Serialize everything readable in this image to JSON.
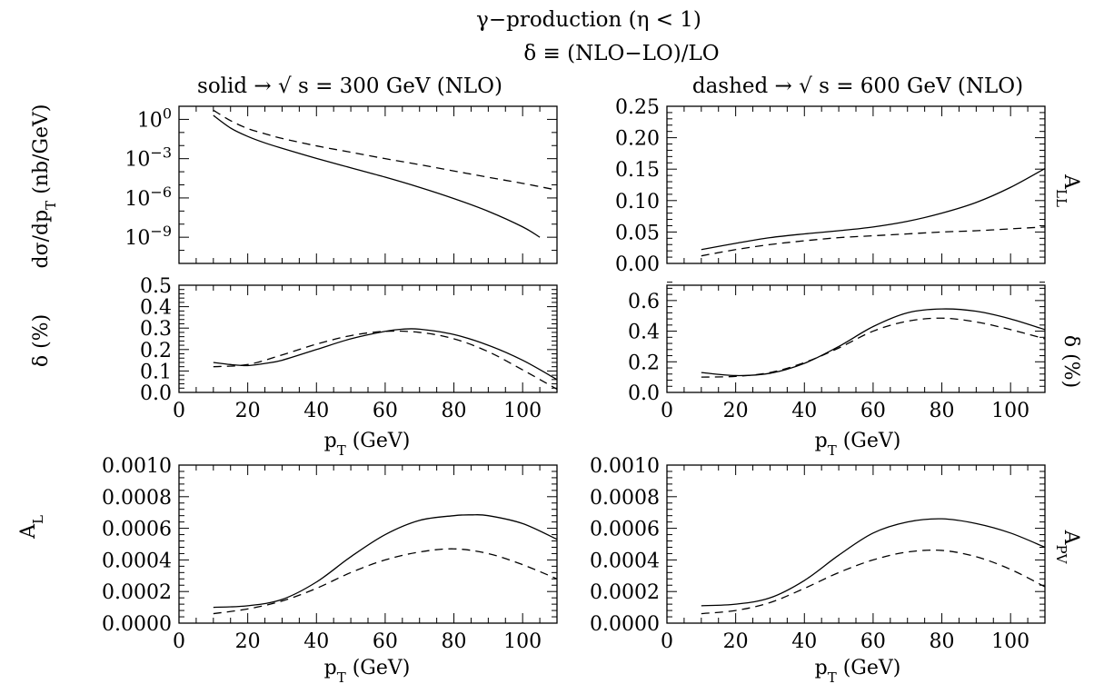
{
  "header": {
    "line1": "γ−production (η < 1)",
    "line2": "δ ≡ (NLO−LO)/LO",
    "left_caption": "solid → √ s = 300 GeV (NLO)",
    "right_caption": "dashed → √ s = 600 GeV (NLO)"
  },
  "chart_data": [
    {
      "id": "xsec",
      "type": "line",
      "ylabel": "dσ/dp_T (nb/GeV)",
      "yscale": "log",
      "xlim": [
        0,
        110
      ],
      "ylim": [
        1e-11,
        10
      ],
      "yticks": [
        1,
        0.001,
        1e-06,
        1e-09
      ],
      "yticklabels": [
        "10^0",
        "10^-3",
        "10^-6",
        "10^-9"
      ],
      "xticks": [
        0,
        20,
        40,
        60,
        80,
        100
      ],
      "xticklabels": [],
      "series": [
        {
          "style": "solid",
          "x": [
            10,
            15,
            20,
            25,
            30,
            40,
            50,
            60,
            70,
            80,
            90,
            100,
            105
          ],
          "y": [
            2.0,
            0.22,
            0.05,
            0.016,
            0.0062,
            0.00105,
            0.0002,
            3.9e-05,
            6.5e-06,
            9e-07,
            9.6e-08,
            6.2e-09,
            1e-09
          ]
        },
        {
          "style": "dashed",
          "x": [
            10,
            15,
            20,
            25,
            30,
            40,
            50,
            60,
            70,
            80,
            90,
            100,
            110
          ],
          "y": [
            5.0,
            0.8,
            0.2,
            0.08,
            0.035,
            0.0095,
            0.0031,
            0.001,
            0.00035,
            0.000115,
            3.8e-05,
            1.3e-05,
            4e-06
          ]
        }
      ]
    },
    {
      "id": "all",
      "type": "line",
      "ylabel": "A_LL",
      "xlim": [
        0,
        110
      ],
      "ylim": [
        0,
        0.25
      ],
      "yticks": [
        0.0,
        0.05,
        0.1,
        0.15,
        0.2,
        0.25
      ],
      "yticklabels": [
        "0.00",
        "0.05",
        "0.10",
        "0.15",
        "0.20",
        "0.25"
      ],
      "xticks": [
        0,
        20,
        40,
        60,
        80,
        100
      ],
      "xticklabels": [],
      "series": [
        {
          "style": "solid",
          "x": [
            10,
            20,
            30,
            40,
            50,
            60,
            70,
            80,
            90,
            100,
            110
          ],
          "y": [
            0.022,
            0.032,
            0.041,
            0.047,
            0.052,
            0.058,
            0.067,
            0.08,
            0.097,
            0.121,
            0.151
          ]
        },
        {
          "style": "dashed",
          "x": [
            10,
            20,
            30,
            40,
            50,
            60,
            70,
            80,
            90,
            100,
            110
          ],
          "y": [
            0.012,
            0.022,
            0.03,
            0.036,
            0.041,
            0.044,
            0.047,
            0.05,
            0.052,
            0.055,
            0.058
          ]
        }
      ]
    },
    {
      "id": "delta300",
      "type": "line",
      "ylabel": "δ (%)",
      "xlabel": "p_T (GeV)",
      "xlim": [
        0,
        110
      ],
      "ylim": [
        0,
        0.5
      ],
      "yticks": [
        0.0,
        0.1,
        0.2,
        0.3,
        0.4,
        0.5
      ],
      "yticklabels": [
        "0.0",
        "0.1",
        "0.2",
        "0.3",
        "0.4",
        "0.5"
      ],
      "xticks": [
        0,
        20,
        40,
        60,
        80,
        100
      ],
      "xticklabels": [
        "0",
        "20",
        "40",
        "60",
        "80",
        "100"
      ],
      "series": [
        {
          "style": "solid",
          "x": [
            10,
            15,
            20,
            25,
            30,
            40,
            50,
            60,
            65,
            70,
            80,
            90,
            100,
            110
          ],
          "y": [
            0.14,
            0.13,
            0.125,
            0.135,
            0.15,
            0.2,
            0.25,
            0.285,
            0.295,
            0.295,
            0.27,
            0.22,
            0.15,
            0.06
          ]
        },
        {
          "style": "dashed",
          "x": [
            10,
            20,
            30,
            40,
            50,
            60,
            70,
            80,
            90,
            100,
            110
          ],
          "y": [
            0.12,
            0.13,
            0.175,
            0.225,
            0.265,
            0.285,
            0.28,
            0.25,
            0.19,
            0.105,
            0.015
          ]
        }
      ]
    },
    {
      "id": "delta600",
      "type": "line",
      "ylabel": "δ (%)",
      "xlabel": "p_T (GeV)",
      "xlim": [
        0,
        110
      ],
      "ylim": [
        0,
        0.7
      ],
      "yticks": [
        0.0,
        0.2,
        0.4,
        0.6
      ],
      "yticklabels": [
        "0.0",
        "0.2",
        "0.4",
        "0.6"
      ],
      "xticks": [
        0,
        20,
        40,
        60,
        80,
        100
      ],
      "xticklabels": [
        "0",
        "20",
        "40",
        "60",
        "80",
        "100"
      ],
      "series": [
        {
          "style": "solid",
          "x": [
            10,
            20,
            30,
            40,
            50,
            60,
            70,
            80,
            90,
            100,
            110
          ],
          "y": [
            0.13,
            0.11,
            0.125,
            0.19,
            0.3,
            0.43,
            0.52,
            0.545,
            0.53,
            0.48,
            0.41
          ]
        },
        {
          "style": "dashed",
          "x": [
            10,
            20,
            30,
            40,
            50,
            60,
            70,
            80,
            90,
            100,
            110
          ],
          "y": [
            0.1,
            0.105,
            0.13,
            0.195,
            0.29,
            0.4,
            0.465,
            0.485,
            0.46,
            0.41,
            0.35
          ]
        }
      ]
    },
    {
      "id": "al",
      "type": "line",
      "ylabel": "A_L",
      "xlabel": "p_T (GeV)",
      "xlim": [
        0,
        110
      ],
      "ylim": [
        0,
        0.001
      ],
      "yticks": [
        0.0,
        0.0002,
        0.0004,
        0.0006,
        0.0008,
        0.001
      ],
      "yticklabels": [
        "0.0000",
        "0.0002",
        "0.0004",
        "0.0006",
        "0.0008",
        "0.0010"
      ],
      "xticks": [
        0,
        20,
        40,
        60,
        80,
        100
      ],
      "xticklabels": [
        "0",
        "20",
        "40",
        "60",
        "80",
        "100"
      ],
      "series": [
        {
          "style": "solid",
          "x": [
            10,
            20,
            30,
            40,
            50,
            60,
            70,
            80,
            85,
            90,
            100,
            110
          ],
          "y": [
            0.0001,
            0.00011,
            0.00015,
            0.00026,
            0.00042,
            0.00056,
            0.00065,
            0.00068,
            0.000685,
            0.00068,
            0.00063,
            0.00053
          ]
        },
        {
          "style": "dashed",
          "x": [
            10,
            20,
            30,
            40,
            50,
            60,
            70,
            80,
            90,
            100,
            110
          ],
          "y": [
            6e-05,
            9e-05,
            0.00014,
            0.00022,
            0.00032,
            0.0004,
            0.00045,
            0.00047,
            0.00044,
            0.00037,
            0.00028
          ]
        }
      ]
    },
    {
      "id": "apv",
      "type": "line",
      "ylabel": "A_PV",
      "xlabel": "p_T (GeV)",
      "xlim": [
        0,
        110
      ],
      "ylim": [
        0,
        0.001
      ],
      "yticks": [
        0.0,
        0.0002,
        0.0004,
        0.0006,
        0.0008,
        0.001
      ],
      "yticklabels": [
        "0.0000",
        "0.0002",
        "0.0004",
        "0.0006",
        "0.0008",
        "0.0010"
      ],
      "xticks": [
        0,
        20,
        40,
        60,
        80,
        100
      ],
      "xticklabels": [
        "0",
        "20",
        "40",
        "60",
        "80",
        "100"
      ],
      "series": [
        {
          "style": "solid",
          "x": [
            10,
            20,
            30,
            40,
            50,
            60,
            70,
            80,
            90,
            100,
            110
          ],
          "y": [
            0.00011,
            0.00012,
            0.00016,
            0.00027,
            0.00043,
            0.00057,
            0.00064,
            0.00066,
            0.00063,
            0.00057,
            0.00048
          ]
        },
        {
          "style": "dashed",
          "x": [
            10,
            20,
            30,
            40,
            50,
            60,
            70,
            80,
            90,
            100,
            110
          ],
          "y": [
            6e-05,
            8e-05,
            0.00013,
            0.00022,
            0.00032,
            0.0004,
            0.00045,
            0.00046,
            0.00042,
            0.00034,
            0.00023
          ]
        }
      ]
    }
  ]
}
